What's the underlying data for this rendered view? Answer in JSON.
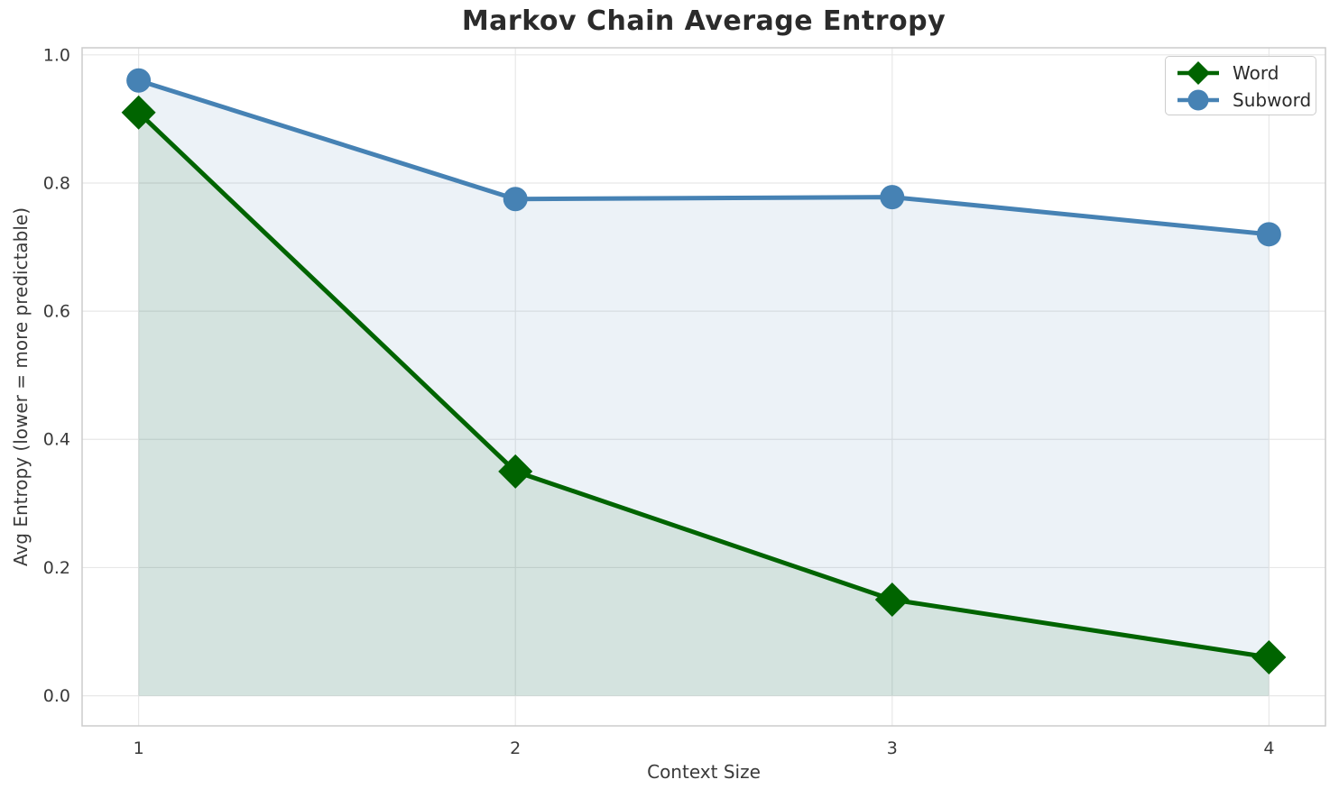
{
  "chart_data": {
    "type": "line",
    "title": "Markov Chain Average Entropy",
    "xlabel": "Context Size",
    "ylabel": "Avg Entropy (lower = more predictable)",
    "x": [
      1,
      2,
      3,
      4
    ],
    "xticklabels": [
      "1",
      "2",
      "3",
      "4"
    ],
    "yticks": [
      0.0,
      0.2,
      0.4,
      0.6,
      0.8,
      1.0
    ],
    "yticklabels": [
      "0.0",
      "0.2",
      "0.4",
      "0.6",
      "0.8",
      "1.0"
    ],
    "xlim": [
      0.85,
      4.15
    ],
    "ylim": [
      -0.047,
      1.011
    ],
    "grid": true,
    "legend_position": "upper right",
    "fill_to_zero": true,
    "fill_alpha": 0.1,
    "series": [
      {
        "name": "Word",
        "marker": "diamond",
        "color": "#006400",
        "values": [
          0.91,
          0.35,
          0.15,
          0.06
        ]
      },
      {
        "name": "Subword",
        "marker": "circle",
        "color": "#4682b4",
        "values": [
          0.96,
          0.775,
          0.778,
          0.72
        ]
      }
    ]
  },
  "colors": {
    "grid": "#e7e7e7",
    "spine": "#cccccc",
    "tick_text": "#3a3a3a",
    "title_text": "#2b2b2b",
    "background": "#ffffff"
  }
}
